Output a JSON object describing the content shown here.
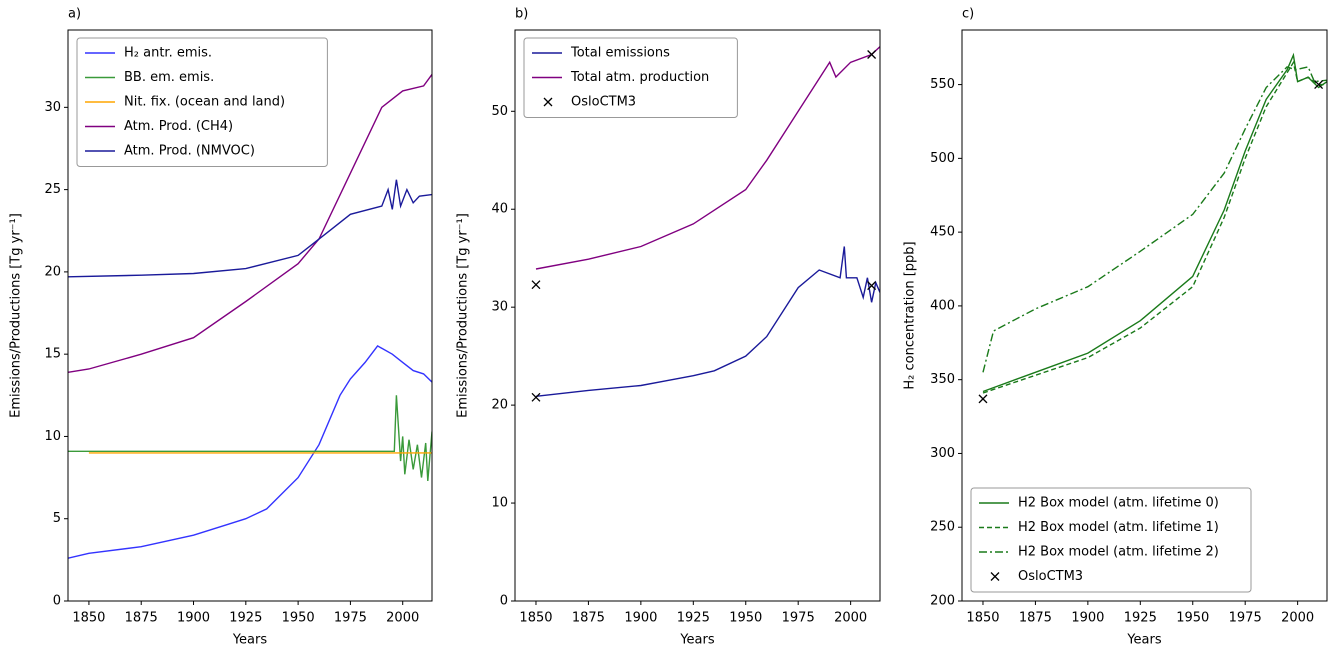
{
  "chart_data": [
    {
      "type": "line",
      "title": "a)",
      "xlabel": "Years",
      "ylabel": "Emissions/Productions [Tg yr⁻¹]",
      "xlim": [
        1840,
        2014
      ],
      "xticks": [
        1850,
        1875,
        1900,
        1925,
        1950,
        1975,
        2000
      ],
      "ylim": [
        0,
        34.7
      ],
      "yticks": [
        0,
        5,
        10,
        15,
        20,
        25,
        30
      ],
      "legend": "upper left",
      "series": [
        {
          "name": "H₂ antr. emis.",
          "color": "#3333ff",
          "dash": "solid",
          "x": [
            1840,
            1850,
            1875,
            1900,
            1915,
            1925,
            1935,
            1950,
            1960,
            1970,
            1975,
            1982,
            1988,
            1995,
            2000,
            2005,
            2010,
            2014
          ],
          "values": [
            2.6,
            2.9,
            3.3,
            4.0,
            4.6,
            5.0,
            5.6,
            7.5,
            9.5,
            12.5,
            13.5,
            14.5,
            15.5,
            15.0,
            14.5,
            14.0,
            13.8,
            13.3
          ]
        },
        {
          "name": "BB. em. emis.",
          "color": "#3a9a3a",
          "dash": "solid",
          "x": [
            1840,
            1996,
            1997,
            1999,
            2000,
            2001,
            2003,
            2005,
            2007,
            2009,
            2011,
            2012,
            2014
          ],
          "values": [
            9.1,
            9.1,
            12.5,
            8.5,
            10.0,
            7.7,
            9.8,
            8.0,
            9.5,
            7.5,
            9.6,
            7.3,
            10.3
          ]
        },
        {
          "name": "Nit. fix. (ocean and land)",
          "color": "#ffa500",
          "dash": "solid",
          "x": [
            1850,
            2014
          ],
          "values": [
            9.0,
            9.0
          ]
        },
        {
          "name": "Atm. Prod. (CH4)",
          "color": "#800080",
          "dash": "solid",
          "x": [
            1840,
            1850,
            1875,
            1900,
            1925,
            1950,
            1960,
            1975,
            1990,
            2000,
            2010,
            2014
          ],
          "values": [
            13.9,
            14.1,
            15.0,
            16.0,
            18.2,
            20.5,
            22.0,
            26.0,
            30.0,
            31.0,
            31.3,
            32.0
          ]
        },
        {
          "name": "Atm. Prod. (NMVOC)",
          "color": "#1a1a9a",
          "dash": "solid",
          "x": [
            1840,
            1875,
            1900,
            1925,
            1950,
            1965,
            1975,
            1990,
            1993,
            1995,
            1997,
            1999,
            2002,
            2005,
            2008,
            2014
          ],
          "values": [
            19.7,
            19.8,
            19.9,
            20.2,
            21.0,
            22.5,
            23.5,
            24.0,
            25.0,
            23.8,
            25.6,
            24.0,
            25.0,
            24.2,
            24.6,
            24.7
          ]
        }
      ]
    },
    {
      "type": "line",
      "title": "b)",
      "xlabel": "Years",
      "ylabel": "Emissions/Productions [Tg yr⁻¹]",
      "xlim": [
        1840,
        2014
      ],
      "xticks": [
        1850,
        1875,
        1900,
        1925,
        1950,
        1975,
        2000
      ],
      "ylim": [
        0,
        58.3
      ],
      "yticks": [
        0,
        10,
        20,
        30,
        40,
        50
      ],
      "legend": "upper left",
      "series": [
        {
          "name": "Total emissions",
          "color": "#1a1a9a",
          "dash": "solid",
          "x": [
            1850,
            1875,
            1900,
            1925,
            1935,
            1950,
            1960,
            1975,
            1985,
            1995,
            1997,
            1998,
            2003,
            2006,
            2008,
            2010,
            2012,
            2014
          ],
          "values": [
            20.9,
            21.5,
            22.0,
            23.0,
            23.5,
            25.0,
            27.0,
            32.0,
            33.8,
            33.0,
            36.2,
            33.0,
            33.0,
            31.0,
            33.0,
            30.5,
            32.5,
            31.5
          ]
        },
        {
          "name": "Total atm. production",
          "color": "#800080",
          "dash": "solid",
          "x": [
            1850,
            1875,
            1900,
            1925,
            1950,
            1960,
            1975,
            1990,
            1993,
            2000,
            2010,
            2014
          ],
          "values": [
            33.9,
            34.9,
            36.2,
            38.5,
            42.0,
            45.0,
            50.0,
            55.0,
            53.5,
            55.0,
            55.8,
            56.6
          ]
        },
        {
          "name": "OsloCTM3",
          "color": "#000000",
          "marker": "x",
          "x": [
            1850,
            1850,
            2010,
            2010
          ],
          "values": [
            32.3,
            20.8,
            55.8,
            32.2
          ]
        }
      ]
    },
    {
      "type": "line",
      "title": "c)",
      "xlabel": "Years",
      "ylabel": "H₂ concentration [ppb]",
      "xlim": [
        1840,
        2014
      ],
      "xticks": [
        1850,
        1875,
        1900,
        1925,
        1950,
        1975,
        2000
      ],
      "ylim": [
        200,
        587
      ],
      "yticks": [
        200,
        250,
        300,
        350,
        400,
        450,
        500,
        550
      ],
      "legend": "lower left",
      "series": [
        {
          "name": "H2 Box model (atm. lifetime 0)",
          "color": "#1a7a1a",
          "dash": "solid",
          "x": [
            1850,
            1875,
            1900,
            1925,
            1950,
            1965,
            1975,
            1985,
            1995,
            1998,
            2000,
            2005,
            2010,
            2014
          ],
          "values": [
            342,
            355,
            368,
            390,
            420,
            465,
            505,
            540,
            560,
            570,
            552,
            555,
            548,
            552
          ]
        },
        {
          "name": "H2 Box model (atm. lifetime 1)",
          "color": "#1a7a1a",
          "dash": "dashed",
          "x": [
            1850,
            1875,
            1900,
            1925,
            1950,
            1965,
            1975,
            1985,
            1995,
            1998,
            2000,
            2005,
            2010,
            2014
          ],
          "values": [
            341,
            353,
            365,
            385,
            413,
            460,
            500,
            535,
            558,
            565,
            552,
            555,
            550,
            550
          ]
        },
        {
          "name": "H2 Box model (atm. lifetime 2)",
          "color": "#1a7a1a",
          "dash": "dashdot",
          "x": [
            1850,
            1855,
            1875,
            1900,
            1925,
            1950,
            1965,
            1975,
            1985,
            1995,
            1999,
            2005,
            2008,
            2014
          ],
          "values": [
            355,
            383,
            398,
            413,
            437,
            462,
            490,
            520,
            548,
            562,
            560,
            562,
            552,
            553
          ]
        },
        {
          "name": "OsloCTM3",
          "color": "#000000",
          "marker": "x",
          "x": [
            1850,
            2010
          ],
          "values": [
            337,
            550
          ]
        }
      ]
    }
  ]
}
